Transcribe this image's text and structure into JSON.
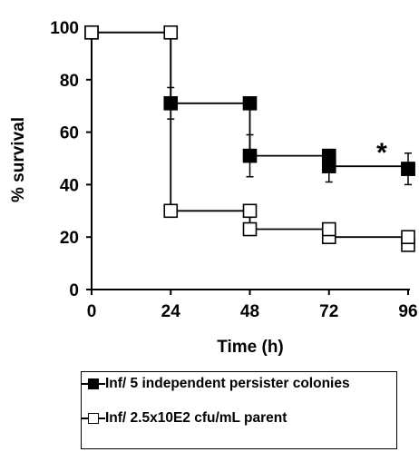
{
  "chart_data": {
    "type": "line",
    "title": "",
    "xlabel": "Time (h)",
    "ylabel": "% survival",
    "xlim": [
      0,
      96
    ],
    "ylim": [
      0,
      100
    ],
    "xticks": [
      "0",
      "24",
      "48",
      "72",
      "96"
    ],
    "yticks": [
      "0",
      "20",
      "40",
      "60",
      "80",
      "100"
    ],
    "step": true,
    "series": [
      {
        "name": "Inf/ 5 independent persister colonies",
        "marker": "filled-square",
        "color": "#000000",
        "x": [
          0,
          24,
          48,
          72,
          96
        ],
        "y": [
          98,
          71,
          51,
          47,
          46
        ],
        "error": [
          1,
          6,
          8,
          6,
          6
        ],
        "extra_points": [
          [
            48,
            71
          ],
          [
            72,
            51
          ],
          [
            96,
            46
          ]
        ]
      },
      {
        "name": "Inf/ 2.5x10E2 cfu/mL parent",
        "marker": "open-square",
        "color": "#000000",
        "x": [
          0,
          24,
          48,
          72,
          96
        ],
        "y": [
          98,
          30,
          23,
          20,
          17
        ],
        "error": [
          0,
          0,
          0,
          0,
          0
        ],
        "extra_points": [
          [
            24,
            98
          ],
          [
            48,
            30
          ],
          [
            72,
            23
          ],
          [
            96,
            20
          ]
        ]
      }
    ],
    "annotations": [
      {
        "text": "*",
        "x": 88,
        "y": 55
      }
    ],
    "grid": false,
    "legend": "bottom"
  }
}
